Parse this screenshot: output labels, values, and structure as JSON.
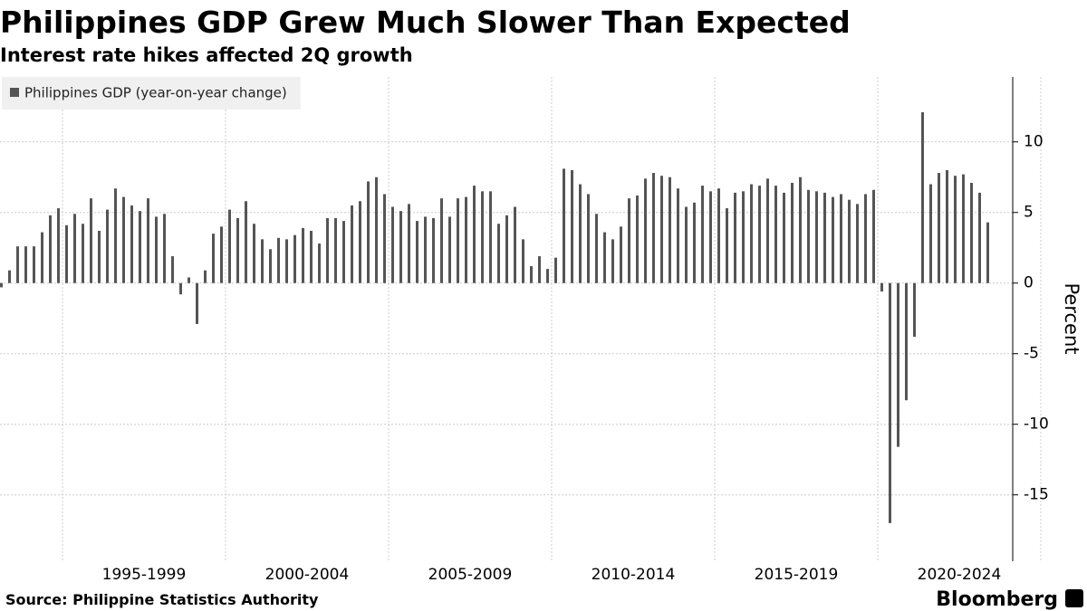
{
  "chart_data": {
    "type": "bar",
    "title": "Philippines GDP Grew Much Slower Than Expected",
    "subtitle": "Interest rate hikes affected 2Q growth",
    "source": "Source:  Philippine Statistics Authority",
    "brand": "Bloomberg",
    "y_label": "Percent",
    "x_labels": [
      "1995-1999",
      "2000-2004",
      "2005-2009",
      "2010-2014",
      "2015-2019",
      "2020-2024"
    ],
    "series": [
      {
        "name": "Philippines GDP (year-on-year change)",
        "color": "#555555",
        "values": [
          -0.3,
          0.9,
          2.6,
          2.6,
          2.6,
          3.6,
          4.8,
          5.3,
          4.1,
          4.9,
          4.2,
          6.0,
          3.7,
          5.2,
          6.7,
          6.1,
          5.5,
          5.1,
          6.0,
          4.7,
          4.9,
          1.9,
          -0.8,
          0.4,
          -2.9,
          0.9,
          3.5,
          4.0,
          5.2,
          4.6,
          5.8,
          4.2,
          3.1,
          2.4,
          3.2,
          3.1,
          3.4,
          3.9,
          3.7,
          2.8,
          4.6,
          4.6,
          4.4,
          5.5,
          5.8,
          7.2,
          7.5,
          6.3,
          5.4,
          5.1,
          5.6,
          4.4,
          4.7,
          4.6,
          6.0,
          4.7,
          6.0,
          6.1,
          6.9,
          6.5,
          6.5,
          4.2,
          4.8,
          5.4,
          3.1,
          1.2,
          1.9,
          1.0,
          1.8,
          8.1,
          8.0,
          7.0,
          6.3,
          4.9,
          3.6,
          3.1,
          4.0,
          6.0,
          6.2,
          7.4,
          7.8,
          7.6,
          7.5,
          6.7,
          5.4,
          5.7,
          6.9,
          6.5,
          6.7,
          5.3,
          6.4,
          6.5,
          7.0,
          6.9,
          7.4,
          6.9,
          6.4,
          7.1,
          7.5,
          6.6,
          6.5,
          6.4,
          6.1,
          6.3,
          5.9,
          5.6,
          6.3,
          6.6,
          -0.6,
          -17.0,
          -11.6,
          -8.3,
          -3.8,
          12.1,
          7.0,
          7.8,
          8.0,
          7.6,
          7.7,
          7.1,
          6.4,
          4.3
        ]
      }
    ],
    "ylim": [
      -19.7,
      14.6
    ],
    "yticks": [
      10,
      5,
      0,
      -5,
      -10,
      -15
    ],
    "grid": true,
    "legend": "upper left"
  }
}
